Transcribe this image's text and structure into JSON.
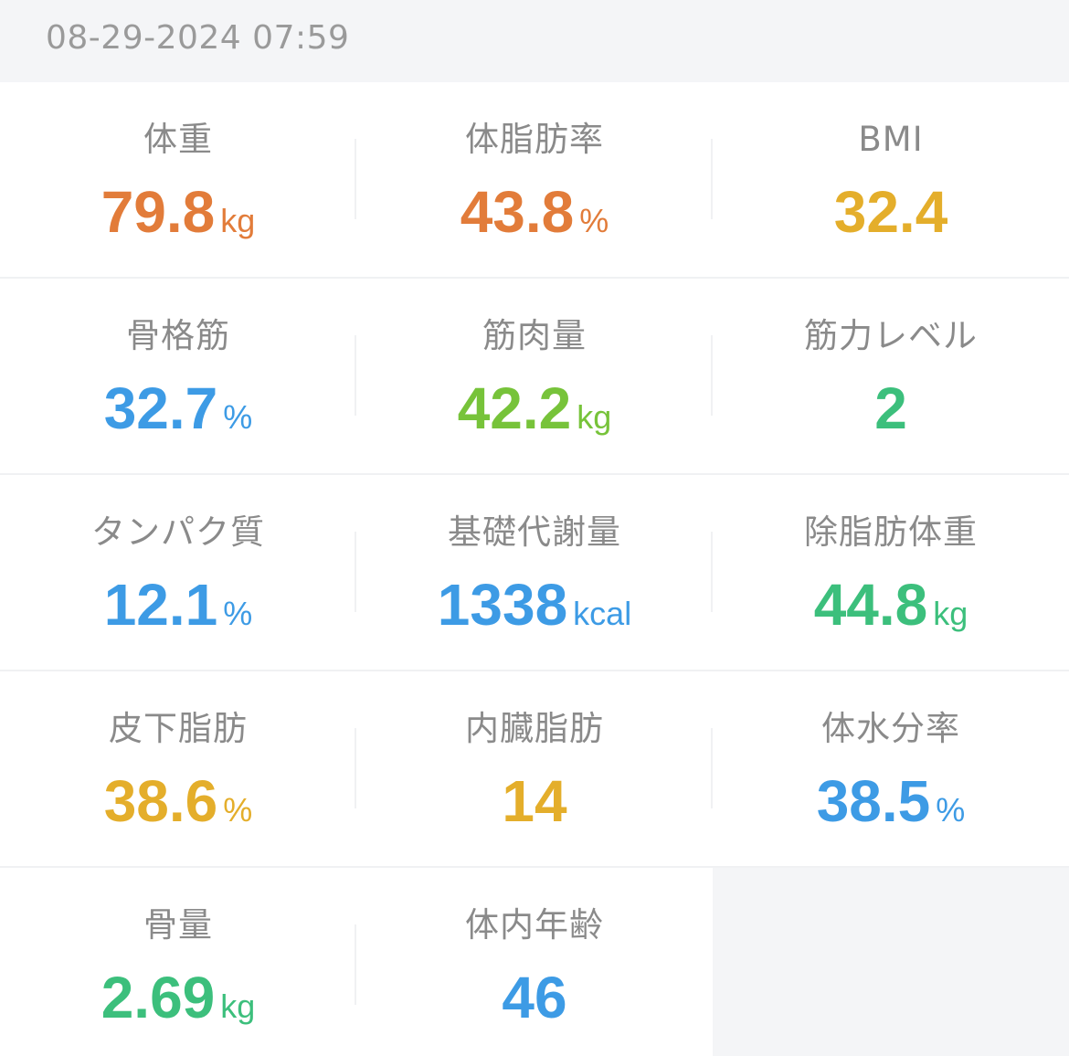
{
  "header": {
    "timestamp": "08-29-2024 07:59"
  },
  "metrics": [
    {
      "label": "体重",
      "value": "79.8",
      "unit": "kg",
      "color": "#e27c3a"
    },
    {
      "label": "体脂肪率",
      "value": "43.8",
      "unit": "%",
      "color": "#e27c3a"
    },
    {
      "label": "BMI",
      "value": "32.4",
      "unit": "",
      "color": "#e4ae2b"
    },
    {
      "label": "骨格筋",
      "value": "32.7",
      "unit": "%",
      "color": "#3d9be5"
    },
    {
      "label": "筋肉量",
      "value": "42.2",
      "unit": "kg",
      "color": "#77c33a"
    },
    {
      "label": "筋力レベル",
      "value": "2",
      "unit": "",
      "color": "#3cbf7c"
    },
    {
      "label": "タンパク質",
      "value": "12.1",
      "unit": "%",
      "color": "#3d9be5"
    },
    {
      "label": "基礎代謝量",
      "value": "1338",
      "unit": "kcal",
      "color": "#3d9be5"
    },
    {
      "label": "除脂肪体重",
      "value": "44.8",
      "unit": "kg",
      "color": "#3cbf7c"
    },
    {
      "label": "皮下脂肪",
      "value": "38.6",
      "unit": "%",
      "color": "#e4ae2b"
    },
    {
      "label": "内臓脂肪",
      "value": "14",
      "unit": "",
      "color": "#e4ae2b"
    },
    {
      "label": "体水分率",
      "value": "38.5",
      "unit": "%",
      "color": "#3d9be5"
    },
    {
      "label": "骨量",
      "value": "2.69",
      "unit": "kg",
      "color": "#3cbf7c"
    },
    {
      "label": "体内年齢",
      "value": "46",
      "unit": "",
      "color": "#3d9be5"
    }
  ]
}
